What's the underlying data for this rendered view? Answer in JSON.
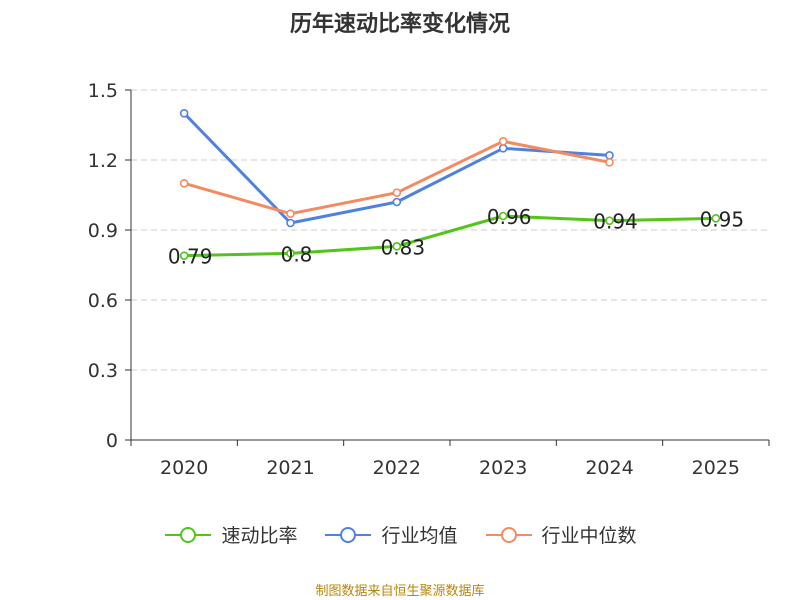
{
  "chart_data": {
    "type": "line",
    "title": "历年速动比率变化情况",
    "categories": [
      "2020",
      "2021",
      "2022",
      "2023",
      "2024",
      "2025"
    ],
    "ylim": [
      0,
      1.5
    ],
    "yticks": [
      "0",
      "0.3",
      "0.6",
      "0.9",
      "1.2",
      "1.5"
    ],
    "grid": true,
    "legend_position": "bottom",
    "series": [
      {
        "name": "速动比率",
        "color": "#52c41a",
        "values": [
          0.79,
          0.8,
          0.83,
          0.96,
          0.94,
          0.95
        ],
        "labels": [
          "0.79",
          "0.8",
          "0.83",
          "0.96",
          "0.94",
          "0.95"
        ]
      },
      {
        "name": "行业均值",
        "color": "#4f81e0",
        "values": [
          1.4,
          0.93,
          1.02,
          1.25,
          1.22,
          null
        ]
      },
      {
        "name": "行业中位数",
        "color": "#f5895f",
        "values": [
          1.1,
          0.97,
          1.06,
          1.28,
          1.19,
          null
        ]
      }
    ]
  },
  "footer": "制图数据来自恒生聚源数据库"
}
